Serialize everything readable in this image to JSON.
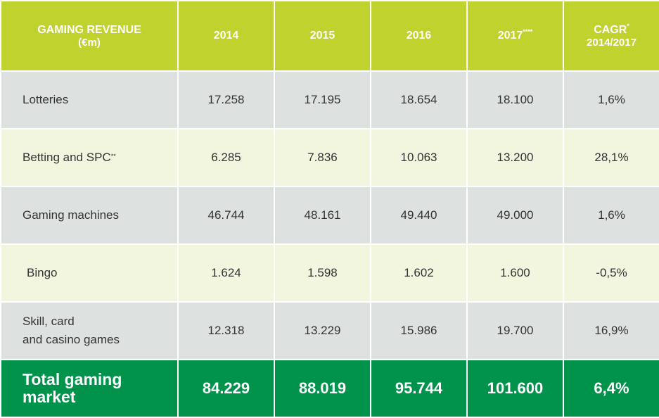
{
  "table": {
    "header": {
      "title": "GAMING REVENUE",
      "unit": "(€m)",
      "years": [
        "2014",
        "2015",
        "2016",
        "2017"
      ],
      "year_2017_mark": "****",
      "cagr_label": "CAGR",
      "cagr_mark": "*",
      "cagr_period": "2014/2017"
    },
    "rows": [
      {
        "label": "Lotteries",
        "mark": "",
        "values": [
          "17.258",
          "17.195",
          "18.654",
          "18.100"
        ],
        "cagr": "1,6%"
      },
      {
        "label": "Betting and SPC",
        "mark": "**",
        "values": [
          "6.285",
          "7.836",
          "10.063",
          "13.200"
        ],
        "cagr": "28,1%"
      },
      {
        "label": "Gaming machines",
        "mark": "",
        "values": [
          "46.744",
          "48.161",
          "49.440",
          "49.000"
        ],
        "cagr": "1,6%"
      },
      {
        "label": "Bingo",
        "mark": "",
        "values": [
          "1.624",
          "1.598",
          "1.602",
          "1.600"
        ],
        "cagr": "-0,5%"
      },
      {
        "label_line1": "Skill, card",
        "label_line2": "and casino games",
        "values": [
          "12.318",
          "13.229",
          "15.986",
          "19.700"
        ],
        "cagr": "16,9%"
      }
    ],
    "total": {
      "label_line1": "Total gaming",
      "label_line2": "market",
      "values": [
        "84.229",
        "88.019",
        "95.744",
        "101.600"
      ],
      "cagr": "6,4%"
    }
  },
  "colors": {
    "header_bg": "#bfd22e",
    "row_grey": "#dde2e0",
    "row_light": "#f2f6df",
    "total_bg": "#01924b"
  }
}
